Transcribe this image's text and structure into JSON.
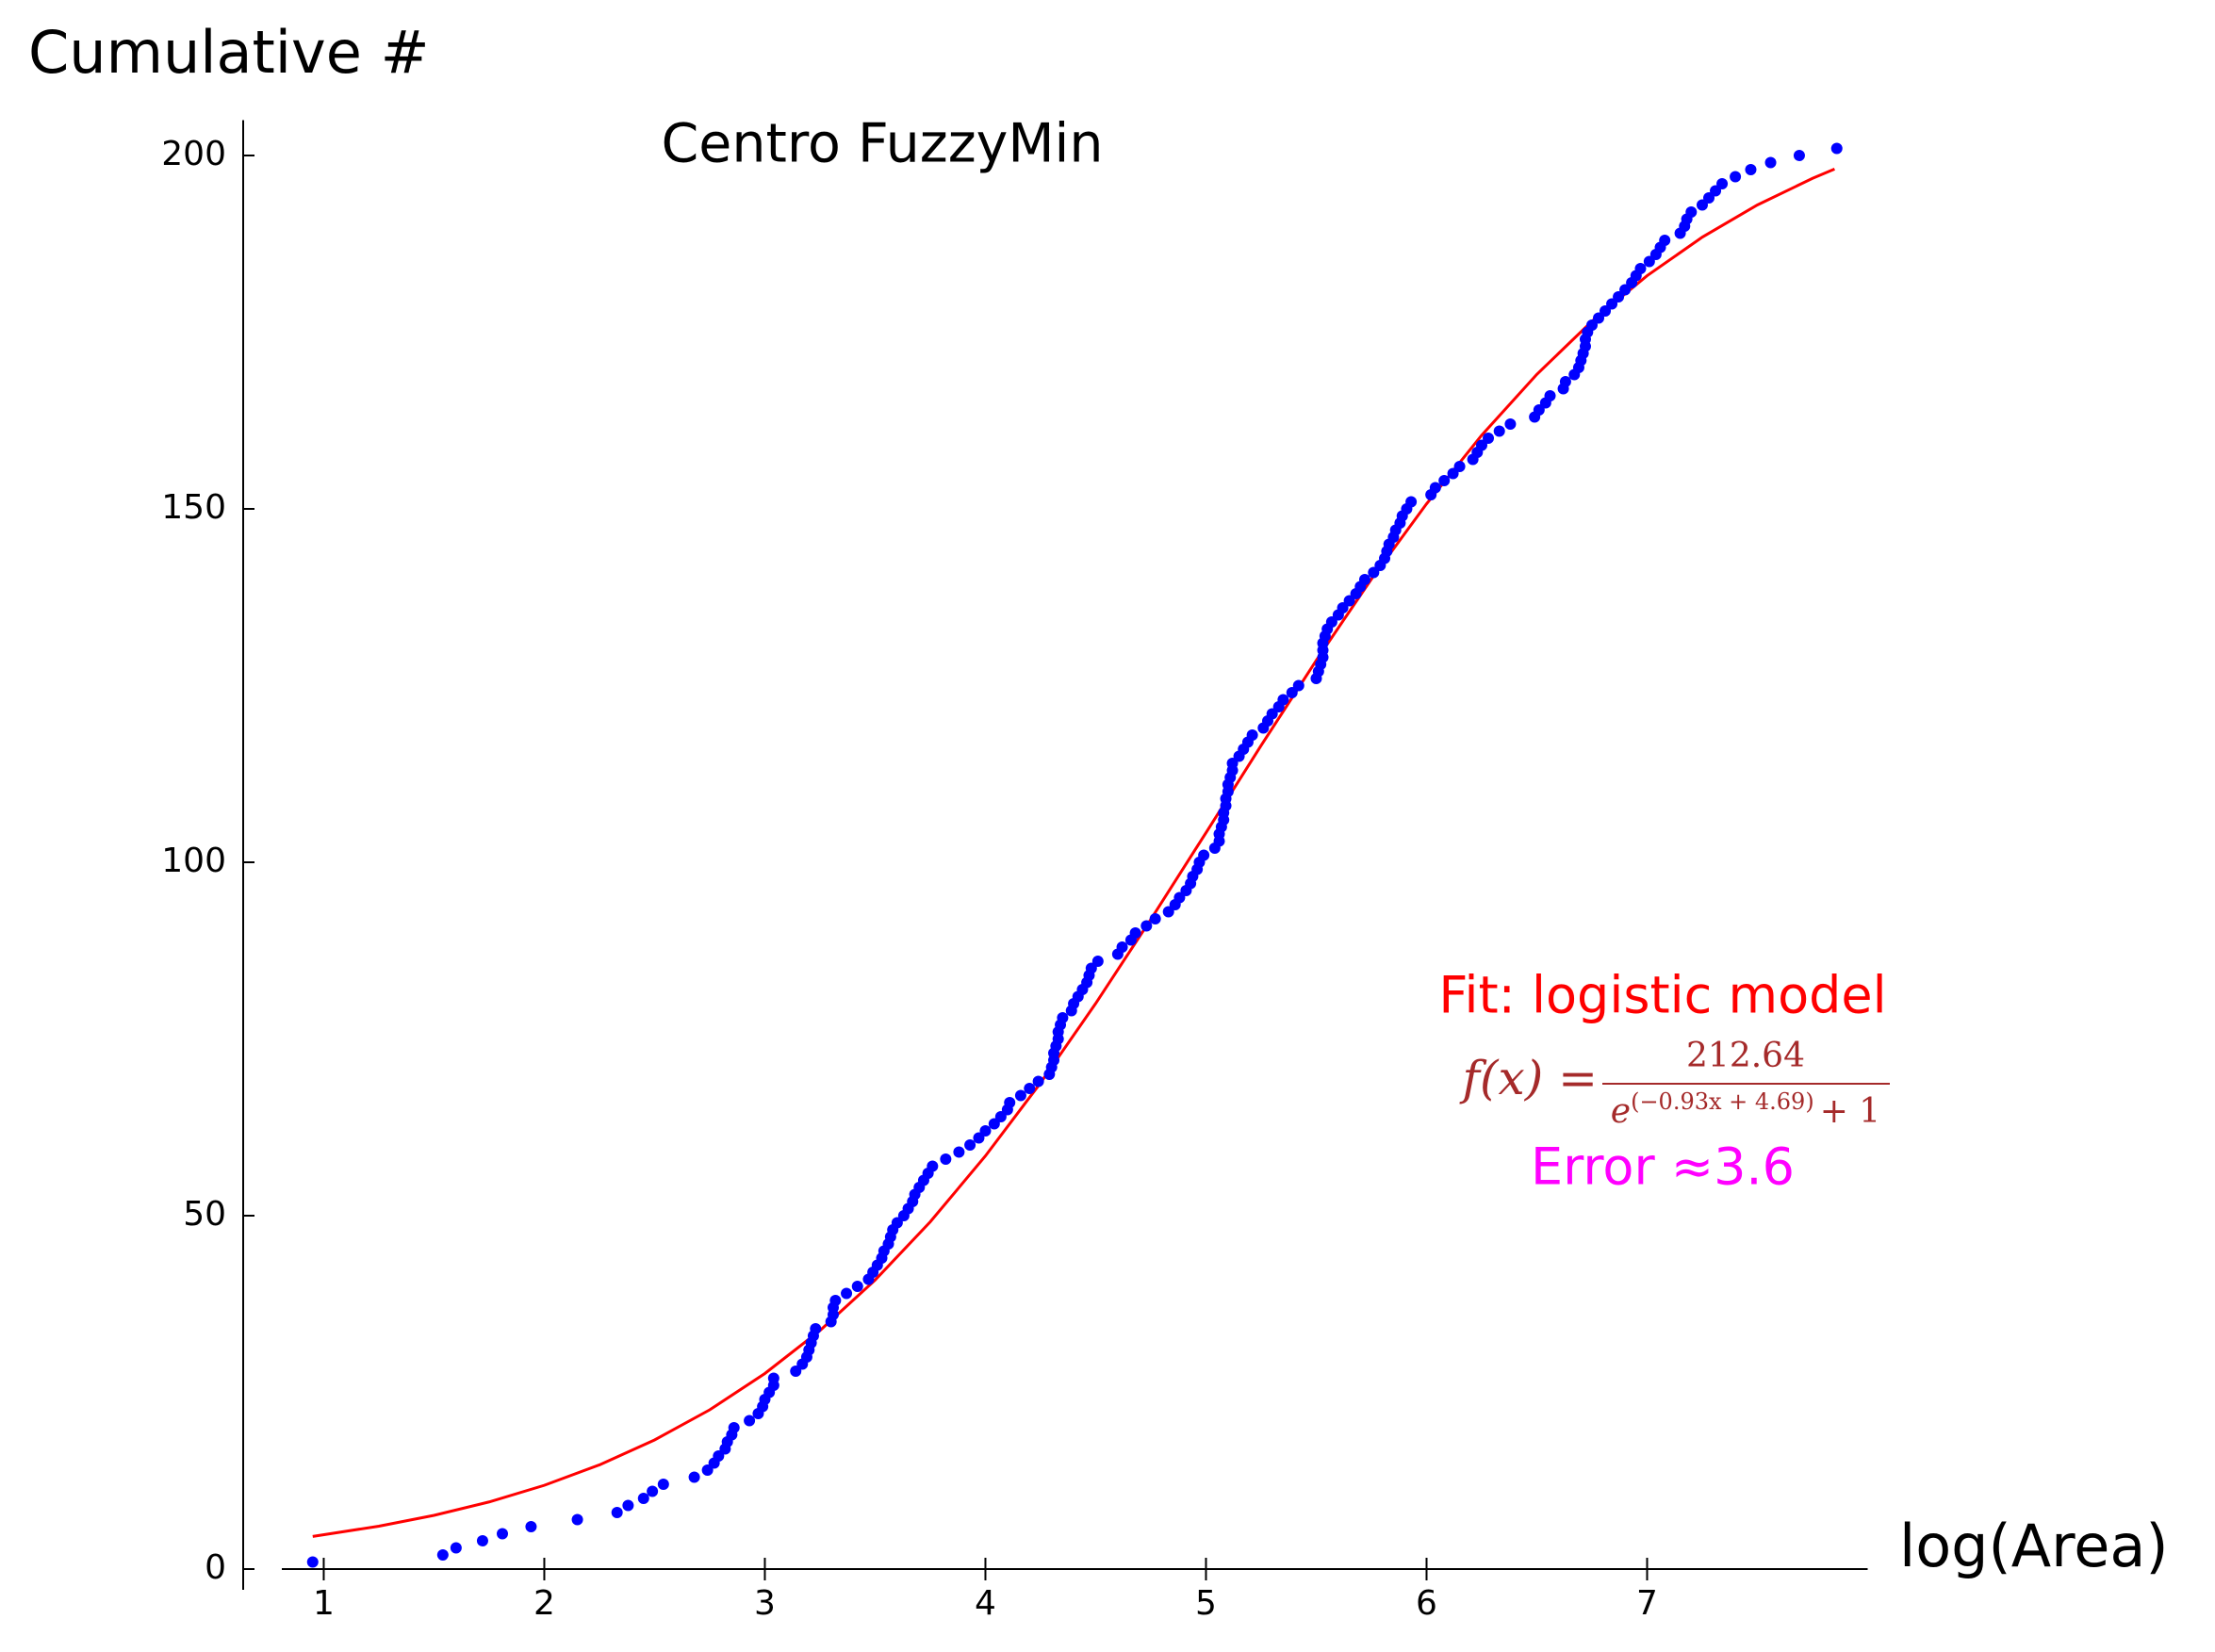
{
  "chart_data": {
    "type": "scatter",
    "title": "Centro FuzzyMin",
    "y_label": "Cumulative #",
    "x_label": "log(Area)",
    "xlim": [
      0.81,
      8.0
    ],
    "ylim": [
      0,
      205
    ],
    "xticks": [
      1,
      2,
      3,
      4,
      5,
      6,
      7
    ],
    "yticks": [
      0,
      50,
      100,
      150,
      200
    ],
    "series": [
      {
        "type": "scatter",
        "color": "#0000ff",
        "x": [
          0.95,
          1.54,
          1.6,
          1.72,
          1.81,
          1.94,
          2.15,
          2.33,
          2.38,
          2.45,
          2.49,
          2.54,
          2.68,
          2.74,
          2.77,
          2.79,
          2.82,
          2.83,
          2.85,
          2.86,
          2.93,
          2.97,
          2.99,
          3.0,
          3.02,
          3.04,
          3.04,
          3.14,
          3.17,
          3.19,
          3.2,
          3.21,
          3.22,
          3.23,
          3.3,
          3.31,
          3.31,
          3.32,
          3.37,
          3.42,
          3.47,
          3.49,
          3.51,
          3.53,
          3.54,
          3.56,
          3.57,
          3.58,
          3.6,
          3.63,
          3.65,
          3.67,
          3.68,
          3.7,
          3.72,
          3.74,
          3.76,
          3.82,
          3.88,
          3.93,
          3.97,
          4.0,
          4.04,
          4.07,
          4.1,
          4.11,
          4.16,
          4.2,
          4.24,
          4.29,
          4.3,
          4.31,
          4.31,
          4.32,
          4.33,
          4.33,
          4.34,
          4.35,
          4.39,
          4.4,
          4.42,
          4.44,
          4.46,
          4.47,
          4.48,
          4.51,
          4.6,
          4.62,
          4.66,
          4.68,
          4.73,
          4.77,
          4.83,
          4.86,
          4.88,
          4.91,
          4.93,
          4.94,
          4.96,
          4.97,
          4.99,
          5.04,
          5.06,
          5.06,
          5.07,
          5.08,
          5.08,
          5.09,
          5.09,
          5.1,
          5.1,
          5.11,
          5.12,
          5.12,
          5.15,
          5.17,
          5.19,
          5.21,
          5.26,
          5.28,
          5.3,
          5.33,
          5.35,
          5.39,
          5.42,
          5.5,
          5.51,
          5.52,
          5.53,
          5.53,
          5.53,
          5.54,
          5.55,
          5.57,
          5.6,
          5.62,
          5.65,
          5.68,
          5.7,
          5.72,
          5.76,
          5.79,
          5.81,
          5.82,
          5.83,
          5.85,
          5.86,
          5.88,
          5.89,
          5.91,
          5.93,
          6.02,
          6.04,
          6.08,
          6.12,
          6.15,
          6.21,
          6.23,
          6.25,
          6.28,
          6.33,
          6.38,
          6.49,
          6.51,
          6.54,
          6.56,
          6.62,
          6.63,
          6.67,
          6.69,
          6.7,
          6.71,
          6.72,
          6.72,
          6.73,
          6.75,
          6.78,
          6.81,
          6.84,
          6.87,
          6.9,
          6.93,
          6.95,
          6.97,
          7.01,
          7.04,
          7.06,
          7.08,
          7.15,
          7.17,
          7.18,
          7.2,
          7.25,
          7.28,
          7.31,
          7.34,
          7.4,
          7.47,
          7.56,
          7.69,
          7.86
        ],
        "y": [
          1,
          2,
          3,
          4,
          5,
          6,
          7,
          8,
          9,
          10,
          11,
          12,
          13,
          14,
          15,
          16,
          17,
          18,
          19,
          20,
          21,
          22,
          23,
          24,
          25,
          26,
          27,
          28,
          29,
          30,
          31,
          32,
          33,
          34,
          35,
          36,
          37,
          38,
          39,
          40,
          41,
          42,
          43,
          44,
          45,
          46,
          47,
          48,
          49,
          50,
          51,
          52,
          53,
          54,
          55,
          56,
          57,
          58,
          59,
          60,
          61,
          62,
          63,
          64,
          65,
          66,
          67,
          68,
          69,
          70,
          71,
          72,
          73,
          74,
          75,
          76,
          77,
          78,
          79,
          80,
          81,
          82,
          83,
          84,
          85,
          86,
          87,
          88,
          89,
          90,
          91,
          92,
          93,
          94,
          95,
          96,
          97,
          98,
          99,
          100,
          101,
          102,
          103,
          104,
          105,
          106,
          107,
          108,
          109,
          110,
          111,
          112,
          113,
          114,
          115,
          116,
          117,
          118,
          119,
          120,
          121,
          122,
          123,
          124,
          125,
          126,
          127,
          128,
          129,
          130,
          131,
          132,
          133,
          134,
          135,
          136,
          137,
          138,
          139,
          140,
          141,
          142,
          143,
          144,
          145,
          146,
          147,
          148,
          149,
          150,
          151,
          152,
          153,
          154,
          155,
          156,
          157,
          158,
          159,
          160,
          161,
          162,
          163,
          164,
          165,
          166,
          167,
          168,
          169,
          170,
          171,
          172,
          173,
          174,
          175,
          176,
          177,
          178,
          179,
          180,
          181,
          182,
          183,
          184,
          185,
          186,
          187,
          188,
          189,
          190,
          191,
          192,
          193,
          194,
          195,
          196,
          197,
          198,
          199,
          200,
          201
        ]
      },
      {
        "type": "line",
        "color": "#ff0000",
        "x": [
          0.95,
          1.25,
          1.5,
          1.75,
          2,
          2.25,
          2.5,
          2.75,
          3,
          3.25,
          3.5,
          3.75,
          4,
          4.25,
          4.5,
          4.75,
          5,
          5.25,
          5.5,
          5.75,
          6,
          6.25,
          6.5,
          6.75,
          7,
          7.25,
          7.5,
          7.75,
          7.85
        ],
        "y": [
          4.62,
          6.07,
          7.6,
          9.5,
          11.85,
          14.74,
          18.27,
          22.53,
          27.67,
          33.76,
          40.89,
          49.13,
          58.45,
          68.79,
          80.03,
          91.93,
          104.18,
          116.52,
          128.56,
          140.07,
          150.71,
          160.42,
          169.03,
          176.55,
          182.99,
          188.44,
          193.0,
          196.76,
          198.08
        ]
      }
    ],
    "annotations": {
      "fit": "Fit: logistic model",
      "formula": {
        "lhs": "f(x) =",
        "numerator": "212.64",
        "base": "e",
        "exponent": "(−0.93x + 4.69)",
        "tail": "+ 1"
      },
      "error": "Error ≈3.6"
    }
  }
}
